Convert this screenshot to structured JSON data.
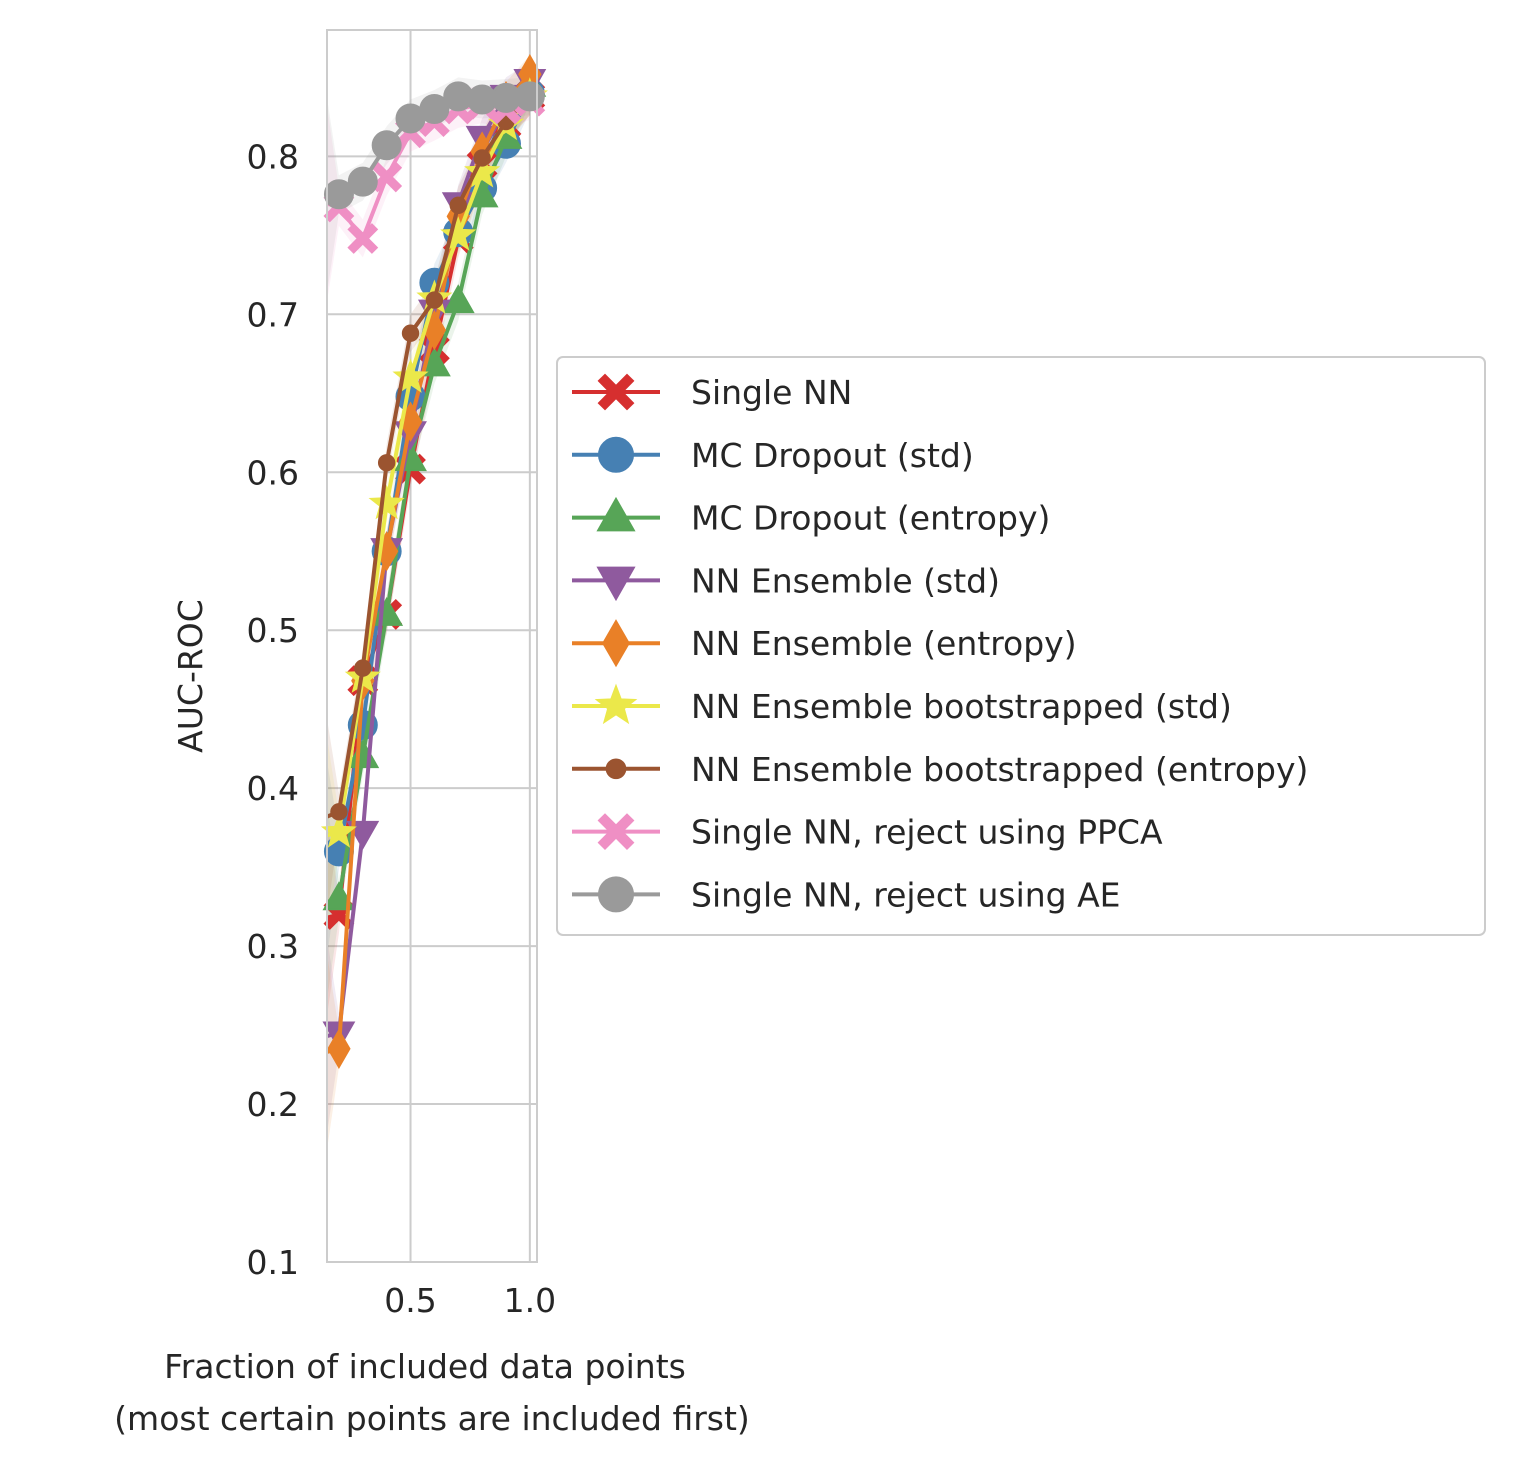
{
  "chart_data": {
    "type": "line",
    "title": "",
    "xlabel_line1": "Fraction of included data points",
    "xlabel_line2": "(most certain points are included first)",
    "ylabel": "AUC-ROC",
    "xlim": [
      0.15,
      1.03
    ],
    "ylim": [
      0.1,
      0.88
    ],
    "xticks": [
      0.5,
      1.0
    ],
    "xtick_labels": [
      "0.5",
      "1.0"
    ],
    "yticks": [
      0.1,
      0.2,
      0.3,
      0.4,
      0.5,
      0.6,
      0.7,
      0.8
    ],
    "ytick_labels": [
      "0.1",
      "0.2",
      "0.3",
      "0.4",
      "0.5",
      "0.6",
      "0.7",
      "0.8"
    ],
    "grid": true,
    "legend_position": "outside-right",
    "x": [
      0.15,
      0.2,
      0.3,
      0.4,
      0.5,
      0.6,
      0.7,
      0.8,
      0.9,
      1.0
    ],
    "series": [
      {
        "name": "Single NN",
        "color": "#d62f2f",
        "marker": "X",
        "values": [
          0.318,
          0.32,
          0.468,
          0.51,
          0.602,
          0.678,
          0.748,
          0.795,
          0.82,
          0.838
        ]
      },
      {
        "name": "MC Dropout (std)",
        "color": "#4680b3",
        "marker": "o",
        "values": [
          0.355,
          0.36,
          0.44,
          0.55,
          0.648,
          0.72,
          0.752,
          0.78,
          0.808,
          0.84
        ]
      },
      {
        "name": "MC Dropout (entropy)",
        "color": "#57a557",
        "marker": "^",
        "values": [
          0.328,
          0.33,
          0.42,
          0.51,
          0.608,
          0.668,
          0.708,
          0.775,
          0.812,
          0.845
        ]
      },
      {
        "name": "NN Ensemble (std)",
        "color": "#8f5a9e",
        "marker": "v",
        "values": [
          0.243,
          0.245,
          0.372,
          0.551,
          0.625,
          0.702,
          0.77,
          0.812,
          0.838,
          0.848
        ]
      },
      {
        "name": "NN Ensemble (entropy)",
        "color": "#e98027",
        "marker": "d",
        "values": [
          0.233,
          0.235,
          0.468,
          0.55,
          0.632,
          0.69,
          0.762,
          0.803,
          0.835,
          0.852
        ]
      },
      {
        "name": "NN Ensemble bootstrapped (std)",
        "color": "#ebe84a",
        "marker": "*",
        "values": [
          0.37,
          0.372,
          0.47,
          0.58,
          0.66,
          0.71,
          0.75,
          0.79,
          0.82,
          0.838
        ]
      },
      {
        "name": "NN Ensemble bootstrapped (entropy)",
        "color": "#9b5430",
        "marker": ".",
        "values": [
          0.382,
          0.385,
          0.476,
          0.606,
          0.688,
          0.709,
          0.769,
          0.799,
          0.822,
          0.838
        ]
      },
      {
        "name": "Single NN, reject using PPCA",
        "color": "#ef8fc4",
        "marker": "X",
        "values": [
          0.77,
          0.768,
          0.748,
          0.787,
          0.815,
          0.822,
          0.83,
          0.833,
          0.83,
          0.835
        ]
      },
      {
        "name": "Single NN, reject using AE",
        "color": "#9a9a9a",
        "marker": "o",
        "values": [
          0.775,
          0.776,
          0.784,
          0.807,
          0.824,
          0.83,
          0.838,
          0.836,
          0.837,
          0.838
        ]
      }
    ]
  }
}
